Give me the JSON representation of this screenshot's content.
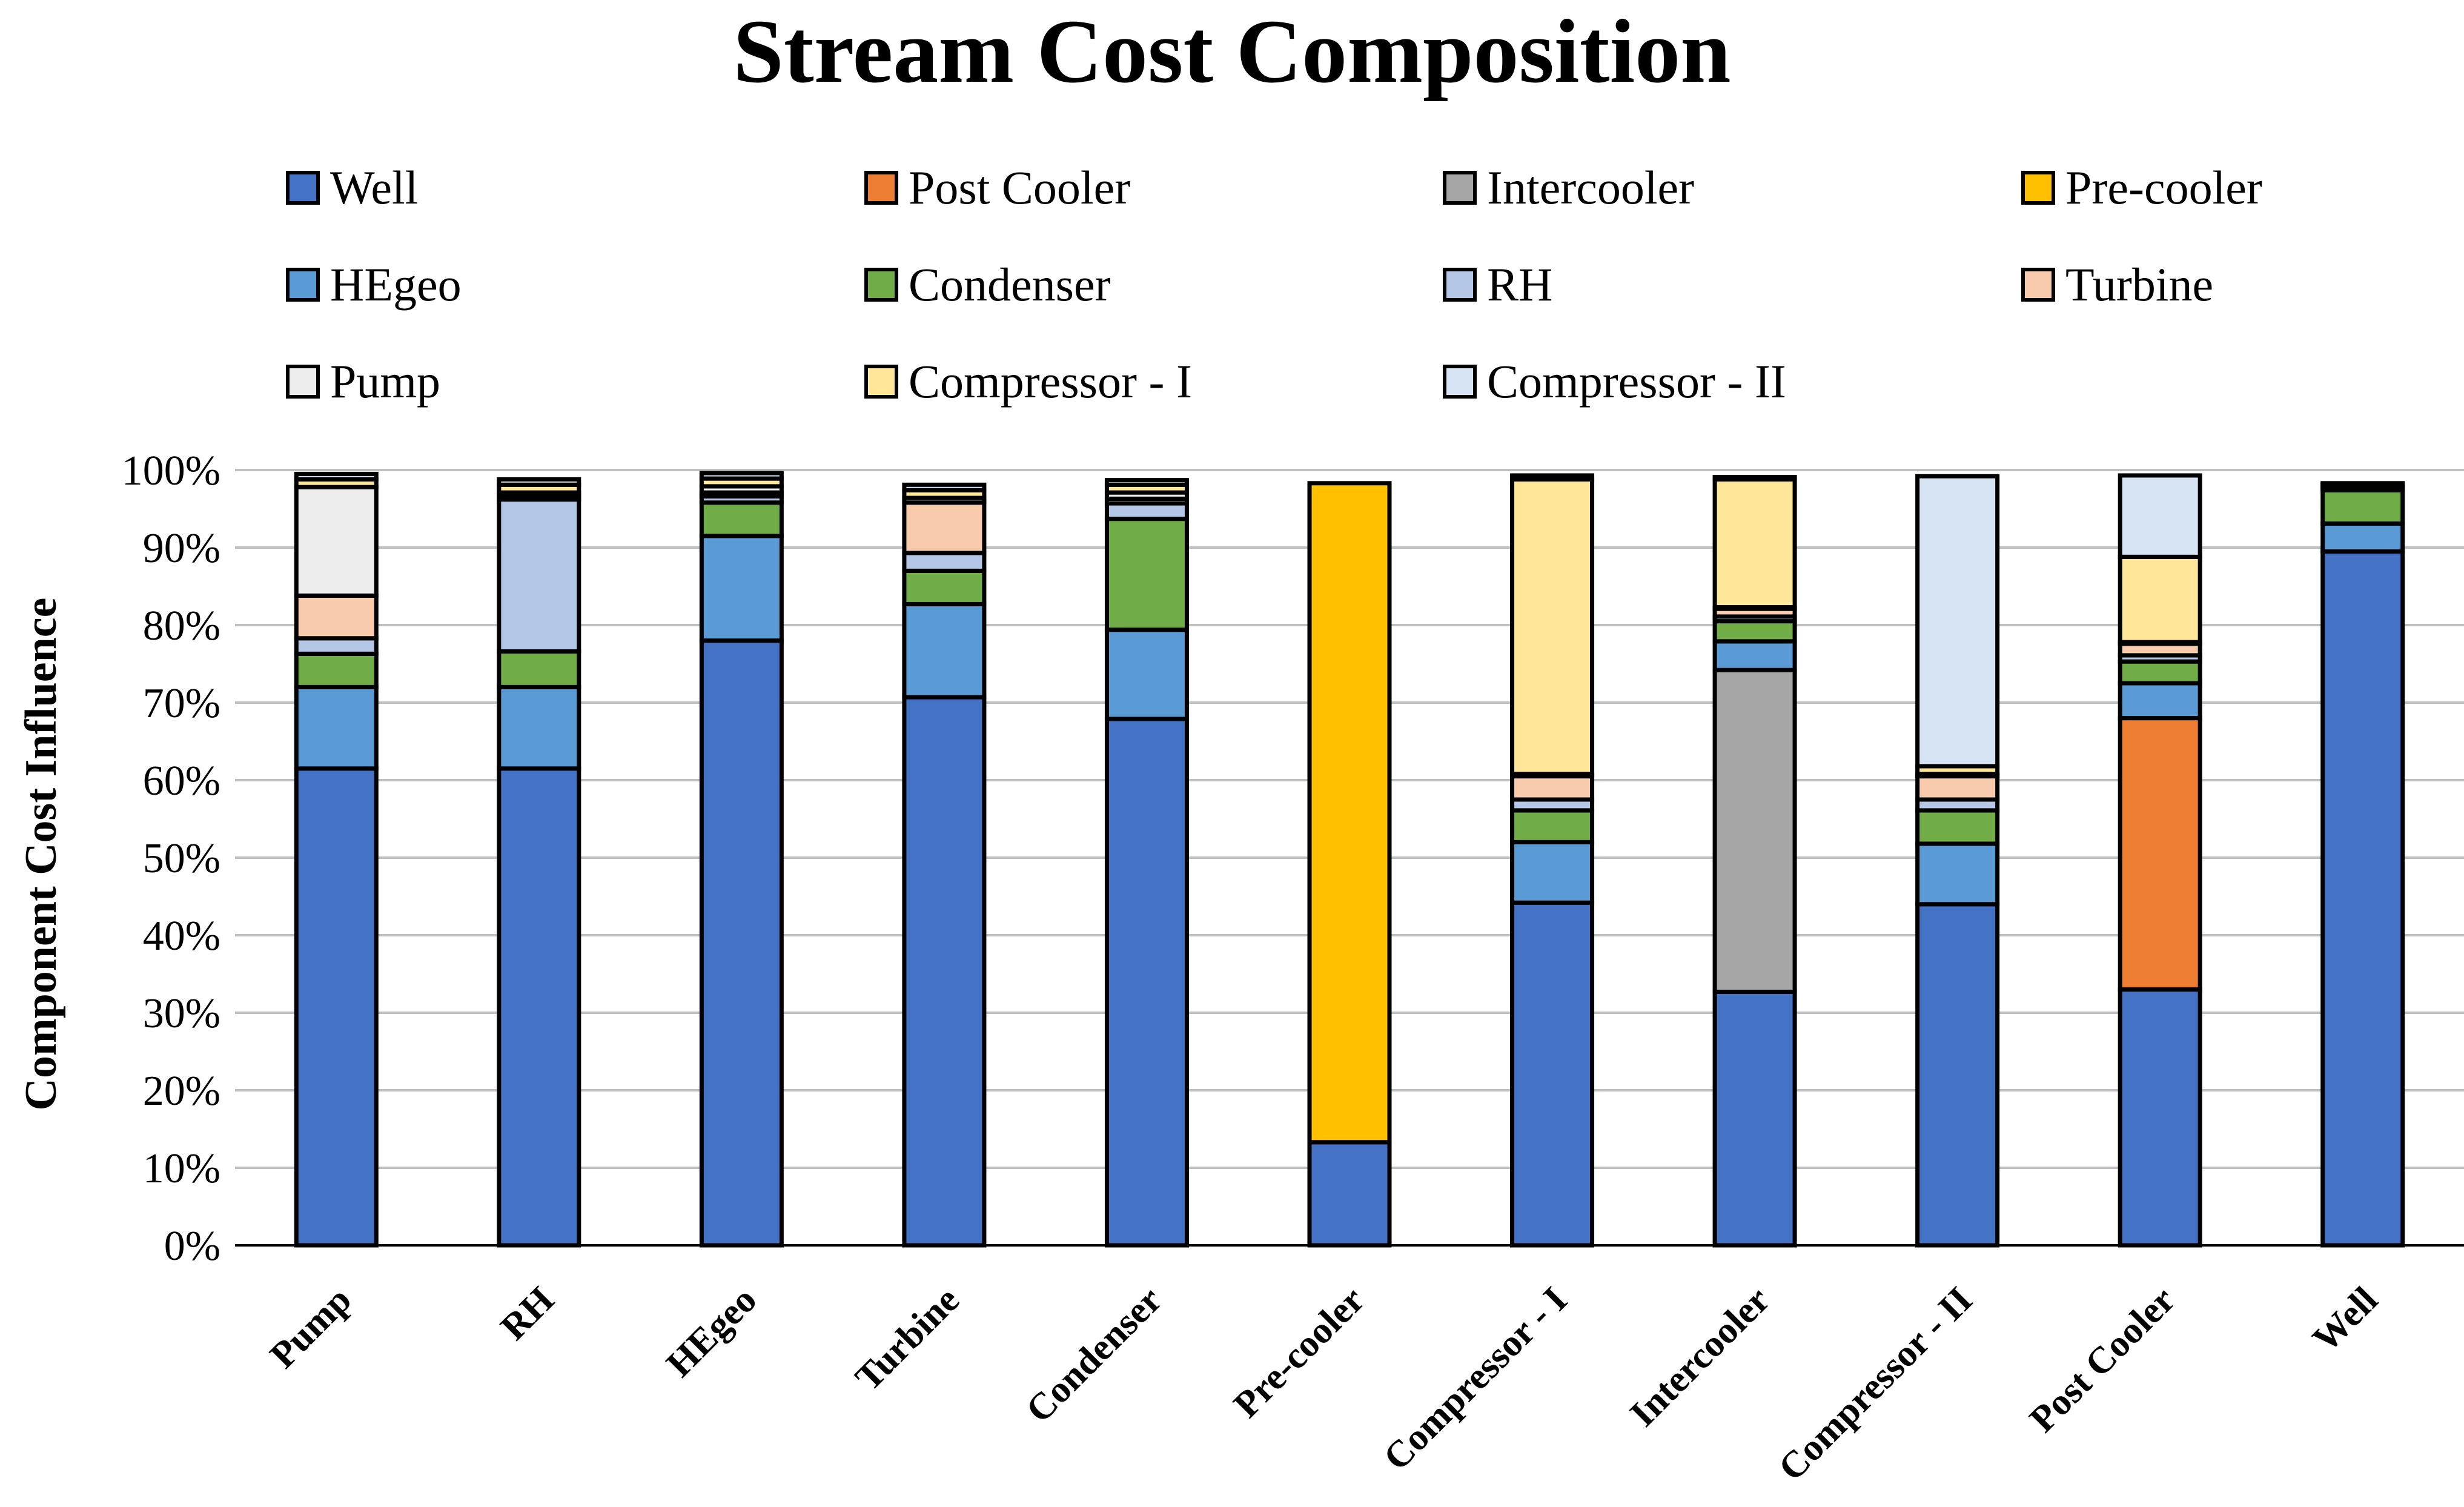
{
  "chart_data": {
    "type": "bar",
    "stacked": true,
    "title": "Stream Cost Composition",
    "ylabel": "Component Cost Influence",
    "xlabel": "",
    "ylim": [
      0,
      100
    ],
    "yticks": [
      "0%",
      "10%",
      "20%",
      "30%",
      "40%",
      "50%",
      "60%",
      "70%",
      "80%",
      "90%",
      "100%"
    ],
    "grid": true,
    "legend_position": "top",
    "categories": [
      "Pump",
      "RH",
      "HEgeo",
      "Turbine",
      "Condenser",
      "Pre-cooler",
      "Compressor - I",
      "Intercooler",
      "Compressor - II",
      "Post Cooler",
      "Well"
    ],
    "series": [
      {
        "name": "Well",
        "color": "#4472C4",
        "values": [
          61.5,
          61.5,
          78.0,
          70.7,
          67.9,
          13.3,
          44.2,
          32.7,
          44.0,
          33.0,
          89.5
        ]
      },
      {
        "name": "Post Cooler",
        "color": "#ED7D31",
        "values": [
          0,
          0,
          0,
          0,
          0,
          0,
          0,
          0,
          0,
          35.0,
          0
        ]
      },
      {
        "name": "Intercooler",
        "color": "#A5A5A5",
        "values": [
          0,
          0,
          0,
          0,
          0,
          0,
          0,
          41.5,
          0,
          0,
          0
        ]
      },
      {
        "name": "Pre-cooler",
        "color": "#FFC000",
        "values": [
          0,
          0,
          0,
          0,
          0,
          85.0,
          0,
          0,
          0,
          0,
          0
        ]
      },
      {
        "name": "HEgeo",
        "color": "#5B9BD5",
        "values": [
          10.5,
          10.5,
          13.5,
          12.0,
          11.5,
          0,
          7.8,
          3.7,
          7.8,
          4.5,
          3.6
        ]
      },
      {
        "name": "Condenser",
        "color": "#70AD47",
        "values": [
          4.3,
          4.6,
          4.3,
          4.3,
          14.3,
          0,
          4.1,
          2.6,
          4.3,
          2.8,
          4.3
        ]
      },
      {
        "name": "RH",
        "color": "#B4C7E7",
        "values": [
          2.0,
          19.6,
          0.8,
          2.3,
          2.0,
          0,
          1.4,
          0.6,
          1.4,
          0.8,
          0.3
        ]
      },
      {
        "name": "Turbine",
        "color": "#F8CBAD",
        "values": [
          5.5,
          0.5,
          0.5,
          6.5,
          0.6,
          0,
          3.0,
          1.0,
          3.0,
          1.5,
          0.2
        ]
      },
      {
        "name": "Pump",
        "color": "#EDEDED",
        "values": [
          14.0,
          0.4,
          0.8,
          0.6,
          0.8,
          0,
          0.3,
          0.2,
          0.3,
          0.2,
          0.2
        ]
      },
      {
        "name": "Compressor - I",
        "color": "#FFE699",
        "values": [
          1.0,
          1.0,
          1.0,
          1.0,
          1.0,
          0,
          38.0,
          16.5,
          1.0,
          11.0,
          0.1
        ]
      },
      {
        "name": "Compressor - II",
        "color": "#D6E3F3",
        "values": [
          0.7,
          0.7,
          0.7,
          0.7,
          0.6,
          0,
          0.5,
          0.3,
          37.4,
          10.5,
          0.1
        ]
      }
    ]
  }
}
